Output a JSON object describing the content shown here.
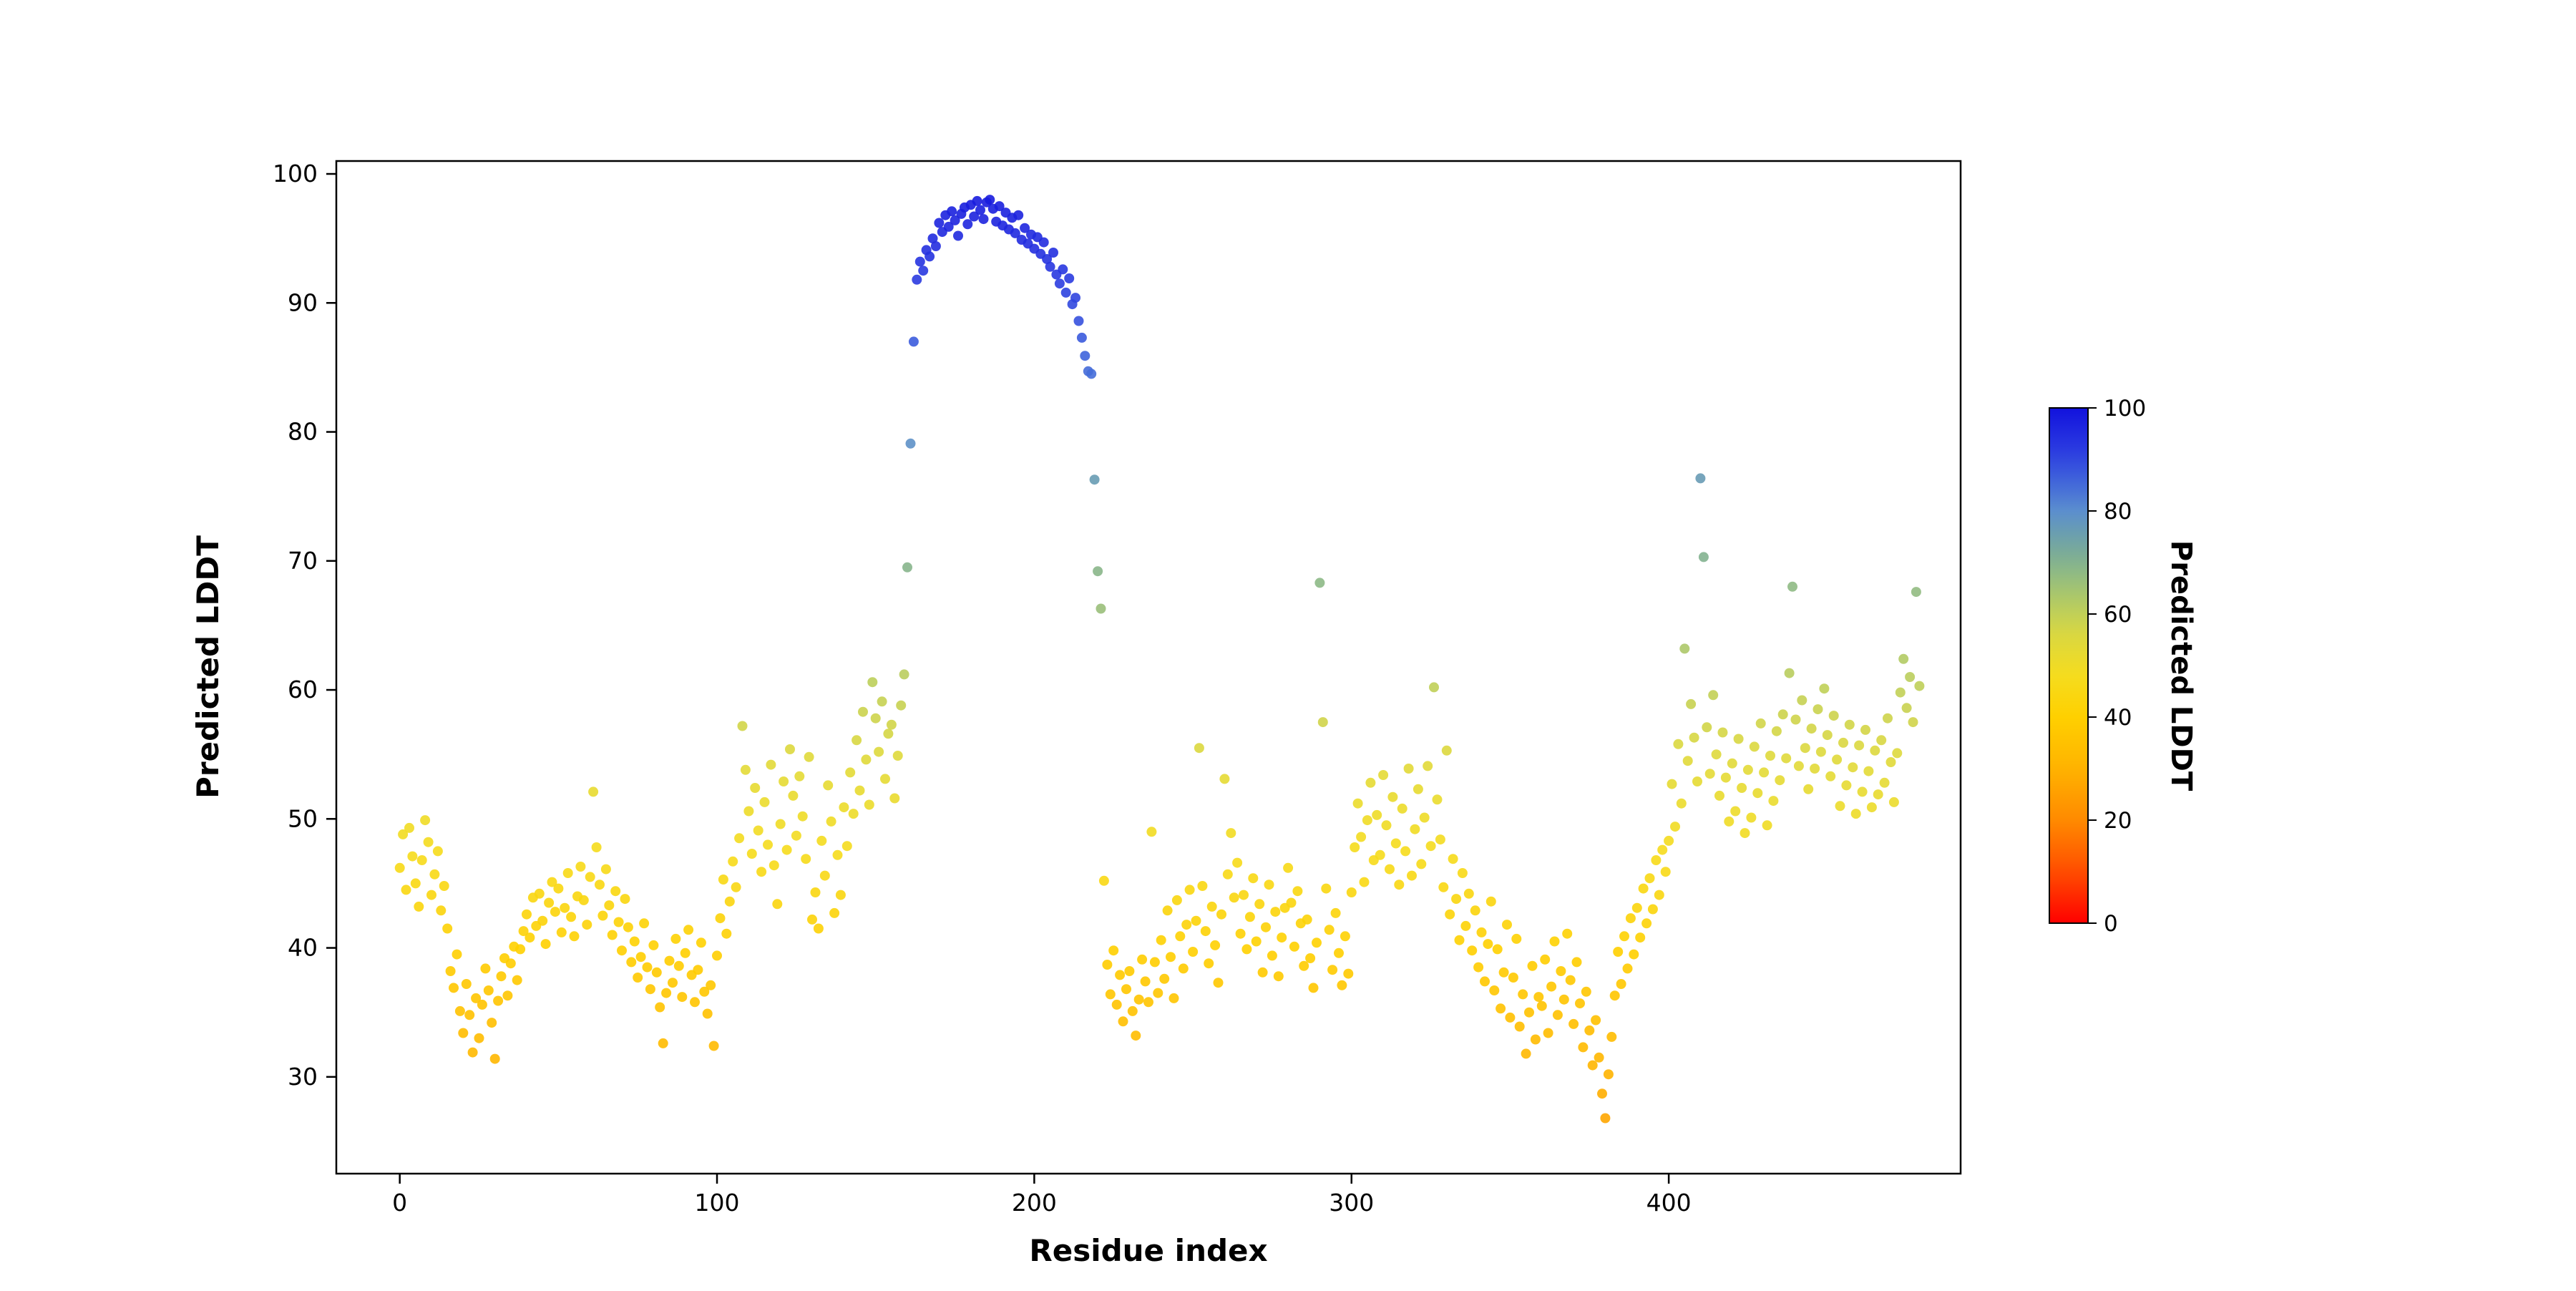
{
  "chart_data": {
    "type": "scatter",
    "title": "",
    "xlabel": "Residue index",
    "ylabel": "Predicted LDDT",
    "xlim": [
      -20,
      492
    ],
    "ylim": [
      22.5,
      101
    ],
    "xticks": [
      0,
      100,
      200,
      300,
      400
    ],
    "yticks": [
      30,
      40,
      50,
      60,
      70,
      80,
      90,
      100
    ],
    "grid": false,
    "legend": "none",
    "marker_color_by": "y",
    "x": {
      "start": 0,
      "step": 1,
      "count": 480
    },
    "values": [
      46.2,
      48.8,
      44.5,
      49.3,
      47.1,
      45.0,
      43.2,
      46.8,
      49.9,
      48.2,
      44.1,
      45.7,
      47.5,
      42.9,
      44.8,
      41.5,
      38.2,
      36.9,
      39.5,
      35.1,
      33.4,
      37.2,
      34.8,
      31.9,
      36.1,
      33.0,
      35.6,
      38.4,
      36.7,
      34.2,
      31.4,
      35.9,
      37.8,
      39.2,
      36.3,
      38.8,
      40.1,
      37.5,
      39.9,
      41.3,
      42.6,
      40.8,
      43.9,
      41.7,
      44.2,
      42.1,
      40.3,
      43.5,
      45.1,
      42.8,
      44.6,
      41.2,
      43.1,
      45.8,
      42.4,
      40.9,
      44.0,
      46.3,
      43.7,
      41.8,
      45.5,
      52.1,
      47.8,
      44.9,
      42.5,
      46.1,
      43.3,
      41.0,
      44.4,
      42.0,
      39.8,
      43.8,
      41.6,
      38.9,
      40.5,
      37.7,
      39.3,
      41.9,
      38.5,
      36.8,
      40.2,
      38.1,
      35.4,
      32.6,
      36.5,
      39.0,
      37.3,
      40.7,
      38.6,
      36.2,
      39.6,
      41.4,
      37.9,
      35.8,
      38.3,
      40.4,
      36.6,
      34.9,
      37.1,
      32.4,
      39.4,
      42.3,
      45.3,
      41.1,
      43.6,
      46.7,
      44.7,
      48.5,
      57.2,
      53.8,
      50.6,
      47.3,
      52.4,
      49.1,
      45.9,
      51.3,
      48.0,
      54.2,
      46.4,
      43.4,
      49.6,
      52.9,
      47.6,
      55.4,
      51.8,
      48.7,
      53.3,
      50.2,
      46.9,
      54.8,
      42.2,
      44.3,
      41.5,
      48.3,
      45.6,
      52.6,
      49.8,
      42.7,
      47.2,
      44.1,
      50.9,
      47.9,
      53.6,
      50.4,
      56.1,
      52.2,
      58.3,
      54.6,
      51.1,
      60.6,
      57.8,
      55.2,
      59.1,
      53.1,
      56.6,
      57.3,
      51.6,
      54.9,
      58.8,
      61.2,
      69.5,
      79.1,
      87.0,
      91.8,
      93.2,
      92.5,
      94.1,
      93.6,
      95.0,
      94.4,
      96.2,
      95.5,
      96.8,
      95.9,
      97.1,
      96.4,
      95.2,
      96.9,
      97.4,
      96.1,
      97.6,
      96.7,
      97.9,
      97.2,
      96.5,
      97.8,
      98.0,
      97.3,
      96.3,
      97.5,
      96.0,
      97.0,
      95.7,
      96.6,
      95.4,
      96.8,
      94.9,
      95.8,
      94.6,
      95.3,
      94.2,
      95.1,
      93.8,
      94.7,
      93.4,
      92.8,
      93.9,
      92.2,
      91.5,
      92.6,
      90.8,
      91.9,
      89.9,
      90.4,
      88.6,
      87.3,
      85.9,
      84.7,
      84.5,
      76.3,
      69.2,
      66.3,
      45.2,
      38.7,
      36.4,
      39.8,
      35.6,
      37.9,
      34.3,
      36.8,
      38.2,
      35.1,
      33.2,
      36.0,
      39.1,
      37.4,
      35.8,
      49.0,
      38.9,
      36.5,
      40.6,
      37.6,
      42.9,
      39.3,
      36.1,
      43.7,
      40.9,
      38.4,
      41.8,
      44.5,
      39.7,
      42.1,
      55.5,
      44.8,
      41.3,
      38.8,
      43.2,
      40.2,
      37.3,
      42.6,
      53.1,
      45.7,
      48.9,
      43.9,
      46.6,
      41.1,
      44.1,
      39.9,
      42.4,
      45.4,
      40.5,
      43.4,
      38.1,
      41.6,
      44.9,
      39.4,
      42.8,
      37.8,
      40.8,
      43.1,
      46.2,
      43.5,
      40.1,
      44.4,
      41.9,
      38.6,
      42.2,
      39.2,
      36.9,
      40.4,
      68.3,
      57.5,
      44.6,
      41.4,
      38.3,
      42.7,
      39.6,
      37.1,
      40.9,
      38.0,
      44.3,
      47.8,
      51.2,
      48.6,
      45.1,
      49.9,
      52.8,
      46.8,
      50.3,
      47.2,
      53.4,
      49.5,
      46.1,
      51.7,
      48.1,
      44.9,
      50.8,
      47.5,
      53.9,
      45.6,
      49.2,
      52.3,
      46.5,
      50.1,
      54.1,
      47.9,
      60.2,
      51.5,
      48.4,
      44.7,
      55.3,
      42.6,
      46.9,
      43.8,
      40.6,
      45.8,
      41.7,
      44.2,
      39.8,
      42.9,
      38.5,
      41.2,
      37.4,
      40.3,
      43.6,
      36.7,
      39.9,
      35.3,
      38.1,
      41.8,
      34.6,
      37.7,
      40.7,
      33.9,
      36.4,
      31.8,
      35.0,
      38.6,
      32.9,
      36.2,
      35.5,
      39.1,
      33.4,
      37.0,
      40.5,
      34.8,
      38.2,
      36.0,
      41.1,
      37.5,
      34.1,
      38.9,
      35.7,
      32.3,
      36.6,
      33.6,
      30.9,
      34.4,
      31.5,
      28.7,
      26.8,
      30.2,
      33.1,
      36.3,
      39.7,
      37.2,
      40.9,
      38.4,
      42.3,
      39.5,
      43.1,
      40.8,
      44.6,
      41.9,
      45.4,
      43.0,
      46.8,
      44.1,
      47.6,
      45.9,
      48.3,
      52.7,
      49.4,
      55.8,
      51.2,
      63.2,
      54.5,
      58.9,
      56.3,
      52.9,
      76.4,
      70.3,
      57.1,
      53.5,
      59.6,
      55.0,
      51.8,
      56.7,
      53.2,
      49.8,
      54.3,
      50.6,
      56.2,
      52.4,
      48.9,
      53.8,
      50.1,
      55.6,
      52.0,
      57.4,
      53.6,
      49.5,
      54.9,
      51.4,
      56.8,
      53.0,
      58.1,
      54.7,
      61.3,
      68.0,
      57.7,
      54.1,
      59.2,
      55.5,
      52.3,
      57.0,
      53.9,
      58.5,
      55.2,
      60.1,
      56.5,
      53.3,
      58.0,
      54.6,
      51.0,
      55.9,
      52.6,
      57.3,
      54.0,
      50.4,
      55.7,
      52.1,
      56.9,
      53.7,
      50.9,
      55.3,
      51.9,
      56.1,
      52.8,
      57.8,
      54.4,
      51.3,
      55.1,
      59.8,
      62.4,
      58.6,
      61.0,
      57.5,
      67.6,
      60.3
    ],
    "colorbar": {
      "label": "Predicted LDDT",
      "ticks": [
        0,
        20,
        40,
        60,
        80,
        100
      ],
      "vmin": 0,
      "vmax": 100
    },
    "colormap_stops": [
      [
        0,
        "#ff0000"
      ],
      [
        10,
        "#ff4e00"
      ],
      [
        20,
        "#ff8a00"
      ],
      [
        30,
        "#ffb300"
      ],
      [
        40,
        "#ffd000"
      ],
      [
        48,
        "#f5dc1e"
      ],
      [
        55,
        "#dfd93c"
      ],
      [
        62,
        "#b5cc62"
      ],
      [
        68,
        "#8fba84"
      ],
      [
        74,
        "#70a4a4"
      ],
      [
        80,
        "#5b8ece"
      ],
      [
        86,
        "#3f63dc"
      ],
      [
        92,
        "#2a3ae0"
      ],
      [
        100,
        "#1212dd"
      ]
    ]
  }
}
